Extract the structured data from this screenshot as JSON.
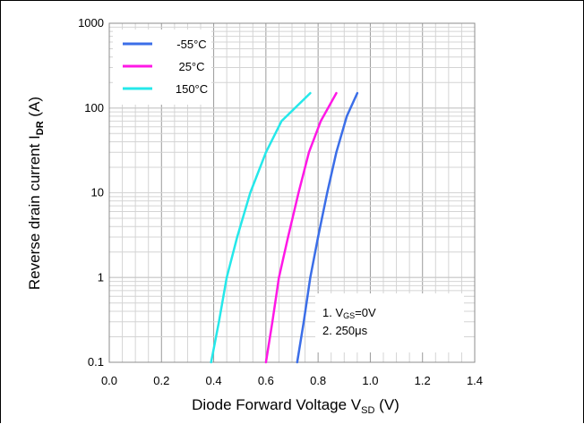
{
  "chart_data": {
    "type": "line",
    "title": "",
    "xlabel": "Diode Forward Voltage V",
    "xlabel_sub": "SD",
    "xlabel_unit": " (V)",
    "ylabel": "Reverse drain current I",
    "ylabel_sub": "DR",
    "ylabel_unit": " (A)",
    "xlim": [
      0.0,
      1.4
    ],
    "ylim": [
      0.1,
      1000
    ],
    "yscale": "log",
    "grid": true,
    "legend_position": "top-left",
    "x_ticks": [
      "0.0",
      "0.2",
      "0.4",
      "0.6",
      "0.8",
      "1.0",
      "1.2",
      "1.4"
    ],
    "y_ticks": [
      "0.1",
      "1",
      "10",
      "100",
      "1000"
    ],
    "series": [
      {
        "name": "-55°C",
        "color": "#3b6ee8",
        "points": [
          [
            0.72,
            0.1
          ],
          [
            0.745,
            0.3
          ],
          [
            0.77,
            1
          ],
          [
            0.8,
            3
          ],
          [
            0.835,
            10
          ],
          [
            0.87,
            30
          ],
          [
            0.91,
            80
          ],
          [
            0.95,
            150
          ]
        ]
      },
      {
        "name": "25°C",
        "color": "#ff18e6",
        "points": [
          [
            0.6,
            0.1
          ],
          [
            0.625,
            0.3
          ],
          [
            0.65,
            1
          ],
          [
            0.685,
            3
          ],
          [
            0.725,
            10
          ],
          [
            0.765,
            30
          ],
          [
            0.81,
            70
          ],
          [
            0.87,
            150
          ]
        ]
      },
      {
        "name": "150°C",
        "color": "#25e8ea",
        "points": [
          [
            0.39,
            0.1
          ],
          [
            0.42,
            0.3
          ],
          [
            0.45,
            1
          ],
          [
            0.49,
            3
          ],
          [
            0.54,
            10
          ],
          [
            0.6,
            30
          ],
          [
            0.66,
            70
          ],
          [
            0.77,
            150
          ]
        ]
      }
    ]
  },
  "annotation": {
    "line1_prefix": "1. V",
    "line1_sub": "GS",
    "line1_suffix": "=0V",
    "line2": "2. 250μs"
  }
}
